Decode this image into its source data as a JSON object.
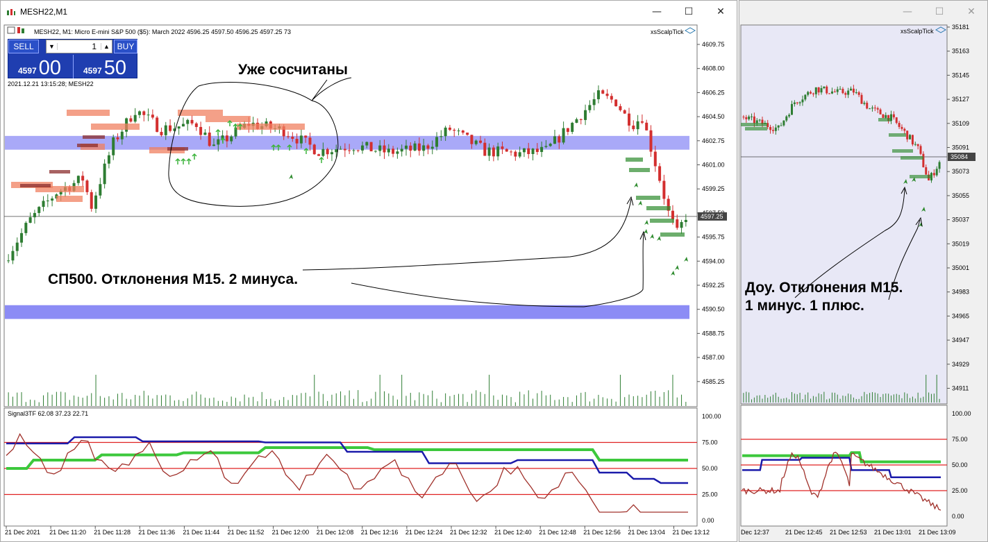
{
  "win1": {
    "title": "MESH22,M1",
    "min": "—",
    "max": "☐",
    "close": "✕"
  },
  "win2": {
    "min": "—",
    "max": "☐",
    "close": "✕"
  },
  "chart1": {
    "header": "MESH22, M1:  Micro E-mini S&P 500 ($5): March 2022   4596.25  4597.50  4596.25  4597.25   73",
    "timestamp": "2021.12.21 13:15:28; MESH22",
    "indicator": "xsScalpTick",
    "price_ticks": [
      "4609.75",
      "4608.00",
      "4606.25",
      "4604.50",
      "4602.75",
      "4601.00",
      "4599.25",
      "4597.50",
      "4595.75",
      "4594.00",
      "4592.25",
      "4590.50",
      "4588.75",
      "4587.00",
      "4585.25"
    ],
    "current_price": "4597.25",
    "osc_label": "Signal3TF 62.08 37.23 22.71",
    "osc_ticks": [
      "100.00",
      "75.00",
      "50.00",
      "25.00",
      "0.00"
    ],
    "time_labels": [
      "21 Dec 2021",
      "21 Dec 11:20",
      "21 Dec 11:28",
      "21 Dec 11:36",
      "21 Dec 11:44",
      "21 Dec 11:52",
      "21 Dec 12:00",
      "21 Dec 12:08",
      "21 Dec 12:16",
      "21 Dec 12:24",
      "21 Dec 12:32",
      "21 Dec 12:40",
      "21 Dec 12:48",
      "21 Dec 12:56",
      "21 Dec 13:04",
      "21 Dec 13:12"
    ]
  },
  "chart2": {
    "indicator": "xsScalpTick",
    "price_ticks": [
      "35181",
      "35163",
      "35145",
      "35127",
      "35109",
      "35091",
      "35073",
      "35055",
      "35037",
      "35019",
      "35001",
      "34983",
      "34965",
      "34947",
      "34929",
      "34911"
    ],
    "current_price": "35084",
    "osc_ticks": [
      "100.00",
      "75.00",
      "50.00",
      "25.00",
      "0.00"
    ],
    "time_labels": [
      "Dec 12:37",
      "21 Dec 12:45",
      "21 Dec 12:53",
      "21 Dec 13:01",
      "21 Dec 13:09"
    ]
  },
  "trade": {
    "sell": "SELL",
    "buy": "BUY",
    "qty": "1",
    "sell_small": "4597",
    "sell_big": "00",
    "buy_small": "4597",
    "buy_big": "50"
  },
  "annotations": {
    "top": "Уже сосчитаны",
    "sp500": "СП500. Отклонения М15. 2 минуса.",
    "dow1": "Доу. Отклонения М15.",
    "dow2": "1 минус. 1 плюс."
  },
  "colors": {
    "bull": "#2e7d32",
    "bear": "#d32f2f",
    "band": "#8c8cf5",
    "osc_green": "#3cc83c",
    "osc_blue": "#1a1aaa",
    "osc_brown": "#a0302a",
    "osc_red": "#e02020"
  }
}
